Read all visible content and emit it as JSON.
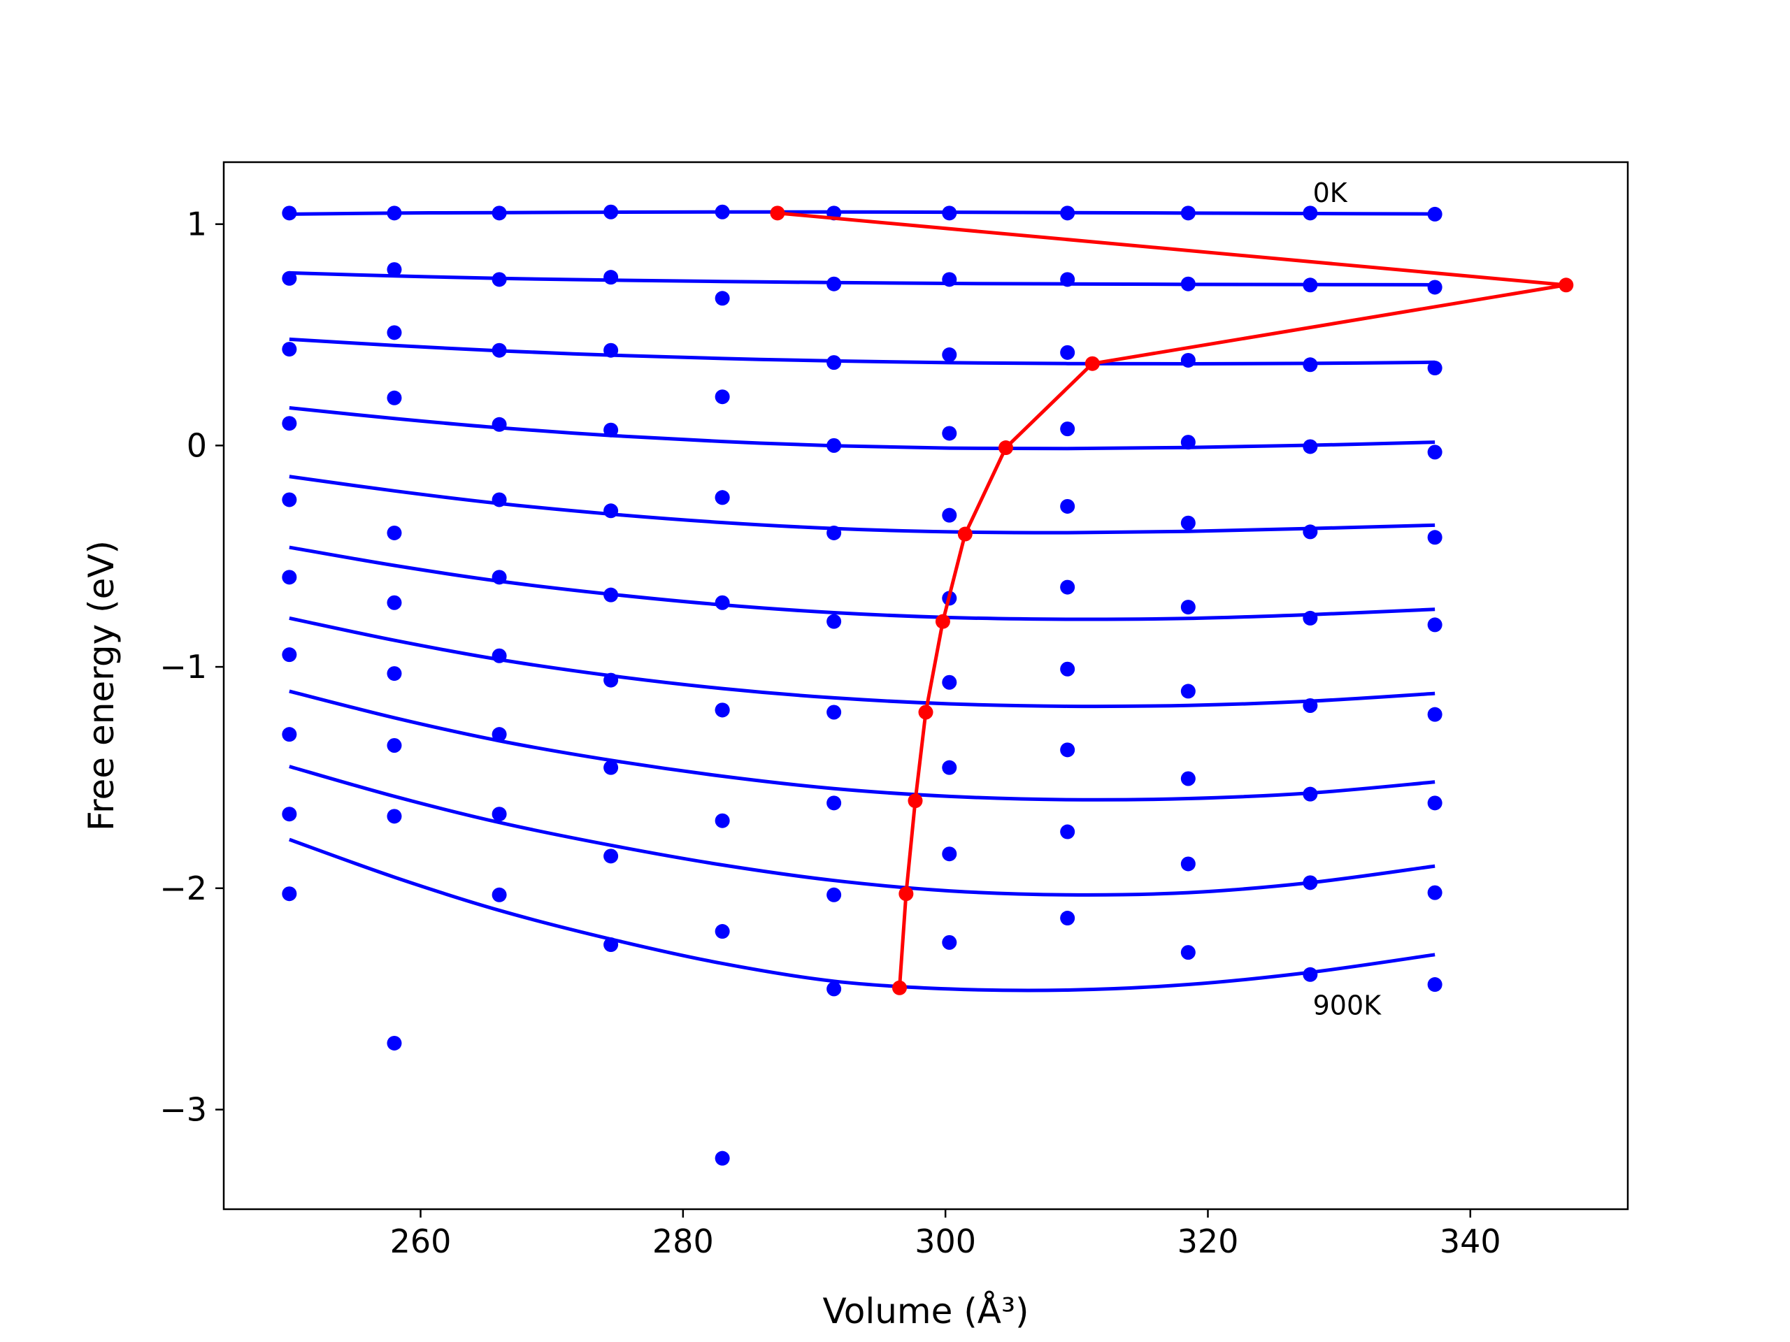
{
  "chart_data": {
    "type": "scatter",
    "xlabel": "Volume (Å³)",
    "ylabel": "Free energy (eV)",
    "xlim": [
      245,
      352
    ],
    "ylim": [
      -3.45,
      1.28
    ],
    "x_ticks": [
      260,
      280,
      300,
      320,
      340
    ],
    "x_tick_labels": [
      "260",
      "280",
      "300",
      "320",
      "340"
    ],
    "y_ticks": [
      1,
      0,
      -1,
      -2,
      -3
    ],
    "y_tick_labels": [
      "1",
      "0",
      "−1",
      "−2",
      "−3"
    ],
    "grid": false,
    "legend": "none",
    "annotations": [
      {
        "text": "0K",
        "x": 328,
        "y": 1.1
      },
      {
        "text": "900K",
        "x": 328,
        "y": -2.57
      }
    ],
    "volumes": [
      250.0,
      258.0,
      266.0,
      274.5,
      283.0,
      291.5,
      300.3,
      309.3,
      318.5,
      327.8,
      337.3
    ],
    "series": [
      {
        "points": [
          1.05,
          1.05,
          1.05,
          1.055,
          1.055,
          1.05,
          1.05,
          1.05,
          1.05,
          1.05,
          1.045
        ],
        "fit": [
          1.045,
          1.05,
          1.052,
          1.054,
          1.055,
          1.055,
          1.054,
          1.052,
          1.05,
          1.048,
          1.046
        ]
      },
      {
        "points": [
          0.755,
          0.795,
          0.75,
          0.76,
          0.665,
          0.73,
          0.75,
          0.75,
          0.73,
          0.725,
          0.715
        ],
        "fit": [
          0.78,
          0.766,
          0.755,
          0.747,
          0.741,
          0.736,
          0.732,
          0.73,
          0.728,
          0.727,
          0.726
        ]
      },
      {
        "points": [
          0.435,
          0.51,
          0.43,
          0.43,
          0.22,
          0.375,
          0.41,
          0.42,
          0.385,
          0.365,
          0.35
        ],
        "fit": [
          0.48,
          0.452,
          0.428,
          0.408,
          0.393,
          0.382,
          0.374,
          0.37,
          0.369,
          0.371,
          0.376
        ]
      },
      {
        "points": [
          0.1,
          0.215,
          0.095,
          0.07,
          -0.235,
          0.0,
          0.055,
          0.075,
          0.015,
          -0.005,
          -0.03
        ],
        "fit": [
          0.17,
          0.122,
          0.08,
          0.045,
          0.018,
          -0.001,
          -0.012,
          -0.014,
          -0.009,
          0.001,
          0.015
        ]
      },
      {
        "points": [
          -0.245,
          -0.395,
          -0.245,
          -0.295,
          -0.235,
          -0.395,
          -0.315,
          -0.275,
          -0.35,
          -0.39,
          -0.415
        ],
        "fit": [
          -0.14,
          -0.205,
          -0.262,
          -0.31,
          -0.348,
          -0.375,
          -0.39,
          -0.394,
          -0.388,
          -0.375,
          -0.36
        ]
      },
      {
        "points": [
          -0.595,
          -0.71,
          -0.595,
          -0.675,
          -0.71,
          -0.795,
          -0.69,
          -0.64,
          -0.73,
          -0.78,
          -0.81
        ],
        "fit": [
          -0.46,
          -0.542,
          -0.613,
          -0.672,
          -0.72,
          -0.755,
          -0.777,
          -0.785,
          -0.781,
          -0.764,
          -0.74
        ]
      },
      {
        "points": [
          -0.945,
          -1.03,
          -0.95,
          -1.06,
          -1.195,
          -1.205,
          -1.07,
          -1.01,
          -1.11,
          -1.175,
          -1.215
        ],
        "fit": [
          -0.78,
          -0.88,
          -0.967,
          -1.04,
          -1.098,
          -1.14,
          -1.167,
          -1.178,
          -1.174,
          -1.155,
          -1.12
        ]
      },
      {
        "points": [
          -1.305,
          -1.355,
          -1.305,
          -1.455,
          -1.195,
          -1.615,
          -1.455,
          -1.375,
          -1.505,
          -1.575,
          -1.615
        ],
        "fit": [
          -1.11,
          -1.23,
          -1.334,
          -1.422,
          -1.494,
          -1.55,
          -1.585,
          -1.6,
          -1.595,
          -1.57,
          -1.52
        ]
      },
      {
        "points": [
          -1.665,
          -1.675,
          -1.665,
          -1.855,
          -1.695,
          -2.03,
          -1.845,
          -1.745,
          -1.89,
          -1.975,
          -2.02
        ],
        "fit": [
          -1.45,
          -1.585,
          -1.703,
          -1.806,
          -1.895,
          -1.965,
          -2.012,
          -2.03,
          -2.02,
          -1.975,
          -1.9
        ]
      },
      {
        "points": [
          -2.025,
          -2.7,
          -2.03,
          -2.255,
          -2.195,
          -2.455,
          -2.245,
          -2.135,
          -2.29,
          -2.39,
          -2.435
        ],
        "fit": [
          -1.78,
          -1.95,
          -2.1,
          -2.23,
          -2.34,
          -2.42,
          -2.455,
          -2.46,
          -2.435,
          -2.38,
          -2.3
        ]
      }
    ],
    "extra_points": [
      {
        "x": 283.0,
        "y": -3.22
      }
    ],
    "minima_curve": {
      "x": [
        287.2,
        347.3,
        311.2,
        304.6,
        301.5,
        299.8,
        298.5,
        297.7,
        297.0,
        296.5
      ],
      "y": [
        1.05,
        0.725,
        0.37,
        -0.01,
        -0.4,
        -0.795,
        -1.205,
        -1.605,
        -2.025,
        -2.45
      ]
    },
    "colors": {
      "fit": "#0000ff",
      "points": "#0000ff",
      "minima": "#ff0000"
    }
  }
}
